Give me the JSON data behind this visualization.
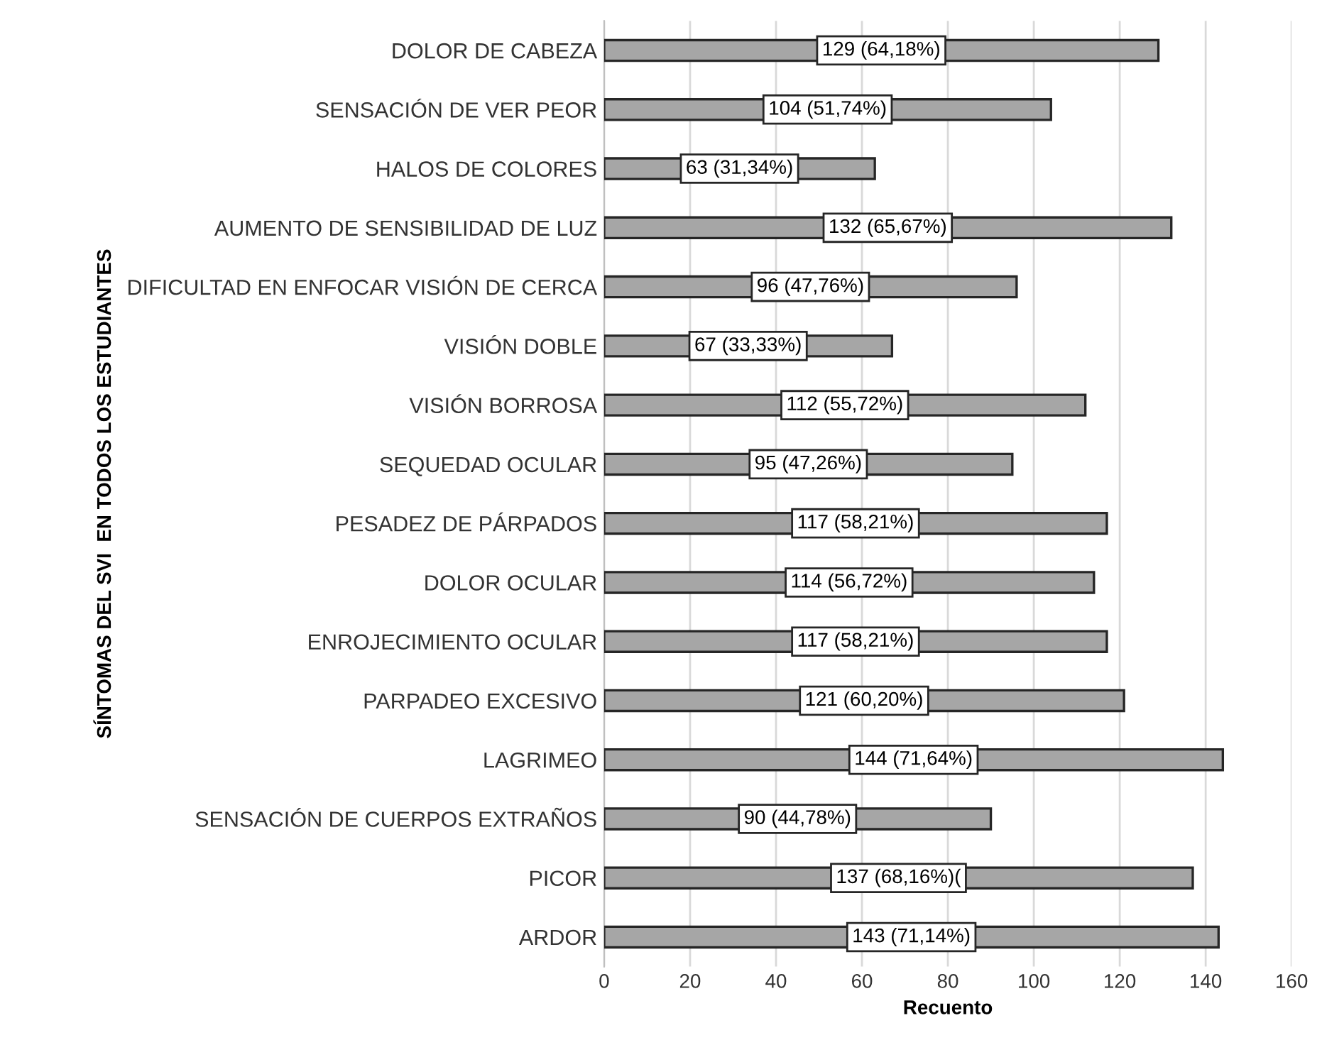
{
  "chart_data": {
    "type": "bar",
    "orientation": "horizontal",
    "ylabel": "SÍNTOMAS DEL SVI  EN TODOS LOS ESTUDIANTES",
    "xlabel": "Recuento",
    "categories": [
      "DOLOR DE CABEZA",
      "SENSACIÓN DE VER PEOR",
      "HALOS DE COLORES",
      "AUMENTO DE SENSIBILIDAD DE LUZ",
      "DIFICULTAD EN ENFOCAR VISIÓN DE CERCA",
      "VISIÓN DOBLE",
      "VISIÓN BORROSA",
      "SEQUEDAD OCULAR",
      "PESADEZ DE PÁRPADOS",
      "DOLOR OCULAR",
      "ENROJECIMIENTO OCULAR",
      "PARPADEO EXCESIVO",
      "LAGRIMEO",
      "SENSACIÓN DE CUERPOS EXTRAÑOS",
      "PICOR",
      "ARDOR"
    ],
    "values": [
      129,
      104,
      63,
      132,
      96,
      67,
      112,
      95,
      117,
      114,
      117,
      121,
      144,
      90,
      137,
      143
    ],
    "value_labels": [
      "129 (64,18%)",
      "104 (51,74%)",
      "63 (31,34%)",
      "132 (65,67%)",
      "96 (47,76%)",
      "67 (33,33%)",
      "112 (55,72%)",
      "95 (47,26%)",
      "117 (58,21%)",
      "114 (56,72%)",
      "117 (58,21%)",
      "121 (60,20%)",
      "144 (71,64%)",
      "90 (44,78%)",
      "137 (68,16%)(",
      "143 (71,14%)"
    ],
    "color": "#a6a6a6",
    "xlim": [
      0,
      160
    ],
    "xticks": [
      0,
      20,
      40,
      60,
      80,
      100,
      120,
      140,
      160
    ],
    "grid": "x"
  }
}
